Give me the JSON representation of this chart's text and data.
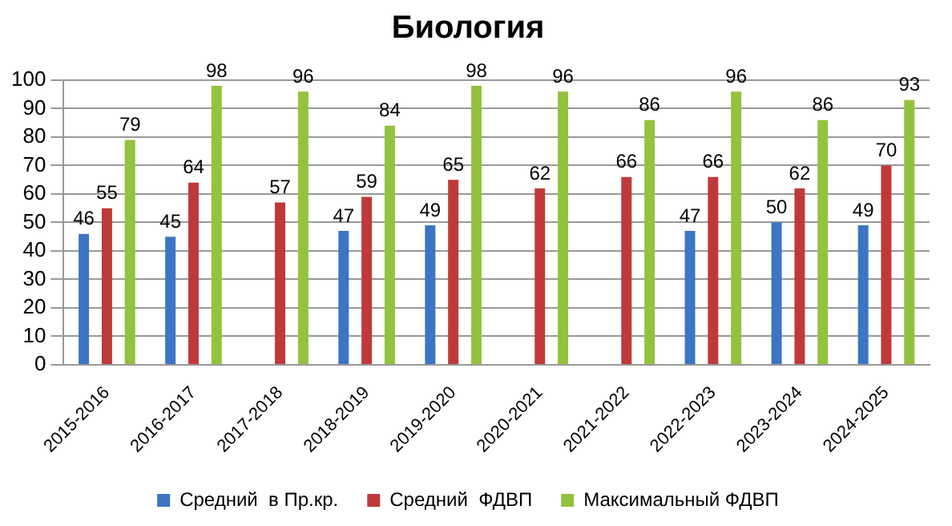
{
  "chart_data": {
    "type": "bar",
    "title": "Биология",
    "categories": [
      "2015-2016",
      "2016-2017",
      "2017-2018",
      "2018-2019",
      "2019-2020",
      "2020-2021",
      "2021-2022",
      "2022-2023",
      "2023-2024",
      "2024-2025"
    ],
    "series": [
      {
        "name": "Средний  в Пр.кр.",
        "color": "#3b75c4",
        "values": [
          46,
          45,
          null,
          47,
          49,
          null,
          null,
          47,
          50,
          49
        ]
      },
      {
        "name": "Средний  ФДВП",
        "color": "#c0393a",
        "values": [
          55,
          64,
          57,
          59,
          65,
          62,
          66,
          66,
          62,
          70
        ]
      },
      {
        "name": "Максимальный ФДВП",
        "color": "#93c23e",
        "values": [
          79,
          98,
          96,
          84,
          98,
          96,
          86,
          96,
          86,
          93
        ]
      }
    ],
    "ylim": [
      0,
      100
    ],
    "yticks": [
      0,
      10,
      20,
      30,
      40,
      50,
      60,
      70,
      80,
      90,
      100
    ],
    "grid": "y",
    "legend": "bottom",
    "data_labels": true
  }
}
